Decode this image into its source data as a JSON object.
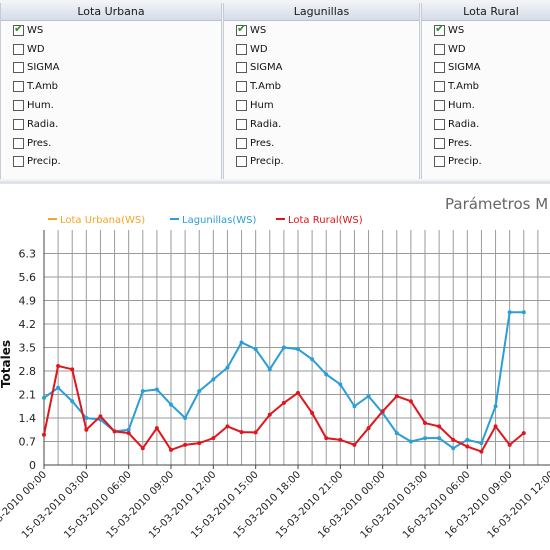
{
  "stations": [
    {
      "name": "Lota Urbana",
      "params": [
        {
          "label": "WS",
          "checked": true
        },
        {
          "label": "WD",
          "checked": false
        },
        {
          "label": "SIGMA",
          "checked": false
        },
        {
          "label": "T.Amb",
          "checked": false
        },
        {
          "label": "Hum.",
          "checked": false
        },
        {
          "label": "Radia.",
          "checked": false
        },
        {
          "label": "Pres.",
          "checked": false
        },
        {
          "label": "Precip.",
          "checked": false
        }
      ]
    },
    {
      "name": "Lagunillas",
      "params": [
        {
          "label": "WS",
          "checked": true
        },
        {
          "label": "WD",
          "checked": false
        },
        {
          "label": "SIGMA",
          "checked": false
        },
        {
          "label": "T.Amb",
          "checked": false
        },
        {
          "label": "Hum",
          "checked": false
        },
        {
          "label": "Radia.",
          "checked": false
        },
        {
          "label": "Pres.",
          "checked": false
        },
        {
          "label": "Precip.",
          "checked": false
        }
      ]
    },
    {
      "name": "Lota Rural",
      "params": [
        {
          "label": "WS",
          "checked": true
        },
        {
          "label": "WD",
          "checked": false
        },
        {
          "label": "SIGMA",
          "checked": false
        },
        {
          "label": "T.Amb",
          "checked": false
        },
        {
          "label": "Hum.",
          "checked": false
        },
        {
          "label": "Radia.",
          "checked": false
        },
        {
          "label": "Pres.",
          "checked": false
        },
        {
          "label": "Precip.",
          "checked": false
        }
      ]
    }
  ],
  "chart_data": {
    "type": "line",
    "title": "Parámetros M",
    "ylabel": "Totales",
    "ylim": [
      0,
      7
    ],
    "yticks": [
      "0",
      "0.7",
      "1.4",
      "2.1",
      "2.8",
      "3.5",
      "4.2",
      "4.9",
      "5.6",
      "6.3"
    ],
    "xticks": [
      "15-03-2010 00:00",
      "15-03-2010 03:00",
      "15-03-2010 06:00",
      "15-03-2010 09:00",
      "15-03-2010 12:00",
      "15-03-2010 15:00",
      "15-03-2010 18:00",
      "15-03-2010 21:00",
      "16-03-2010 00:00",
      "16-03-2010 03:00",
      "16-03-2010 06:00",
      "16-03-2010 09:00",
      "16-03-2010 12:00"
    ],
    "x_hours": [
      0,
      1,
      2,
      3,
      4,
      5,
      6,
      7,
      8,
      9,
      10,
      11,
      12,
      13,
      14,
      15,
      16,
      17,
      18,
      19,
      20,
      21,
      22,
      23,
      24,
      25,
      26,
      27,
      28,
      29,
      30,
      31,
      32,
      33,
      34,
      35,
      36
    ],
    "grid": true,
    "legend_position": "top-left",
    "series": [
      {
        "name": "Lota Urbana(WS)",
        "color": "#f5a623",
        "values": []
      },
      {
        "name": "Lagunillas(WS)",
        "color": "#2a9fd6",
        "values": [
          2.0,
          2.3,
          1.9,
          1.4,
          1.35,
          1.0,
          1.05,
          2.2,
          2.25,
          1.8,
          1.4,
          2.2,
          2.55,
          2.9,
          3.65,
          3.45,
          2.85,
          3.5,
          3.45,
          3.15,
          2.7,
          2.4,
          1.75,
          2.05,
          1.55,
          0.95,
          0.7,
          0.8,
          0.8,
          0.5,
          0.75,
          0.65,
          1.75,
          4.55,
          4.55
        ]
      },
      {
        "name": "Lota Rural(WS)",
        "color": "#e0161d",
        "values": [
          0.9,
          2.95,
          2.85,
          1.05,
          1.45,
          1.0,
          0.95,
          0.5,
          1.1,
          0.45,
          0.6,
          0.65,
          0.8,
          1.15,
          0.98,
          0.97,
          1.5,
          1.85,
          2.15,
          1.55,
          0.8,
          0.75,
          0.6,
          1.1,
          1.6,
          2.05,
          1.9,
          1.25,
          1.15,
          0.75,
          0.55,
          0.4,
          1.15,
          0.6,
          0.95
        ]
      }
    ]
  }
}
